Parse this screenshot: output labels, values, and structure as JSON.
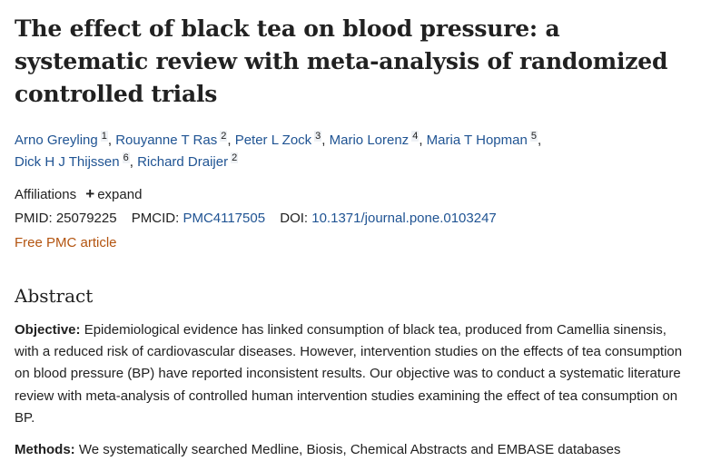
{
  "article": {
    "title": "The effect of black tea on blood pressure: a systematic review with meta-analysis of randomized controlled trials"
  },
  "authors": [
    {
      "name": "Arno Greyling",
      "aff": "1"
    },
    {
      "name": "Rouyanne T Ras",
      "aff": "2"
    },
    {
      "name": "Peter L Zock",
      "aff": "3"
    },
    {
      "name": "Mario Lorenz",
      "aff": "4"
    },
    {
      "name": "Maria T Hopman",
      "aff": "5"
    },
    {
      "name": "Dick H J Thijssen",
      "aff": "6"
    },
    {
      "name": "Richard Draijer",
      "aff": "2"
    }
  ],
  "affiliations": {
    "label": "Affiliations",
    "expand_label": "expand"
  },
  "identifiers": {
    "pmid_label": "PMID:",
    "pmid": "25079225",
    "pmcid_label": "PMCID:",
    "pmcid": "PMC4117505",
    "doi_label": "DOI:",
    "doi": "10.1371/journal.pone.0103247"
  },
  "free_pmc": "Free PMC article",
  "abstract": {
    "heading": "Abstract",
    "objective_label": "Objective:",
    "objective_text": "Epidemiological evidence has linked consumption of black tea, produced from Camellia sinensis, with a reduced risk of cardiovascular diseases. However, intervention studies on the effects of tea consumption on blood pressure (BP) have reported inconsistent results. Our objective was to conduct a systematic literature review with meta-analysis of controlled human intervention studies examining the effect of tea consumption on BP.",
    "methods_label": "Methods:",
    "methods_text": "We systematically searched Medline, Biosis, Chemical Abstracts and EMBASE databases"
  },
  "colors": {
    "link": "#205493",
    "free_pmc": "#b35410",
    "text": "#212121"
  }
}
